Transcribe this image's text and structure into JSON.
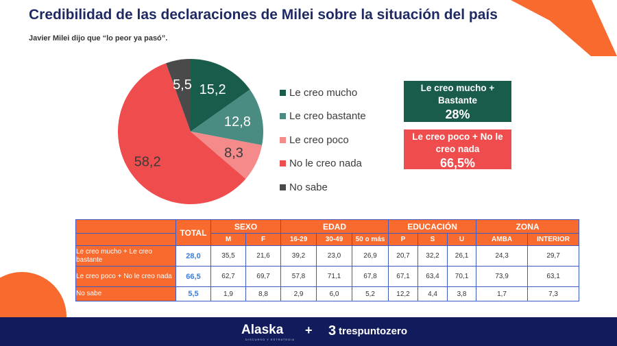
{
  "title": "Credibilidad de las declaraciones de Milei sobre la situación del país",
  "subtitle": "Javier Milei dijo que “lo peor ya pasó”.",
  "chart_data": {
    "type": "pie",
    "start_angle_deg": 0,
    "slices": [
      {
        "label": "Le creo mucho",
        "value": 15.2,
        "value_label": "15,2",
        "color": "#195c4c"
      },
      {
        "label": "Le creo bastante",
        "value": 12.8,
        "value_label": "12,8",
        "color": "#4b8c82"
      },
      {
        "label": "Le creo poco",
        "value": 8.3,
        "value_label": "8,3",
        "color": "#f58a8a"
      },
      {
        "label": "No le creo nada",
        "value": 58.2,
        "value_label": "58,2",
        "color": "#ef4d4d"
      },
      {
        "label": "No sabe",
        "value": 5.5,
        "value_label": "5,5",
        "color": "#4a4a4a"
      }
    ],
    "legend_position": "right"
  },
  "summary_boxes": {
    "positive": {
      "label": "Le creo mucho + Bastante",
      "value": "28%",
      "color": "#195c4c"
    },
    "negative": {
      "label": "Le creo poco + No le creo nada",
      "value": "66,5%",
      "color": "#ef4d4d"
    }
  },
  "table": {
    "total_header": "TOTAL",
    "groups": [
      {
        "label": "SEXO",
        "subs": [
          "M",
          "F"
        ]
      },
      {
        "label": "EDAD",
        "subs": [
          "16-29",
          "30-49",
          "50 o más"
        ]
      },
      {
        "label": "EDUCACIÓN",
        "subs": [
          "P",
          "S",
          "U"
        ]
      },
      {
        "label": "ZONA",
        "subs": [
          "AMBA",
          "INTERIOR"
        ]
      }
    ],
    "rows": [
      {
        "label": "Le creo mucho + Le creo bastante",
        "total": "28,0",
        "values": [
          "35,5",
          "21,6",
          "39,2",
          "23,0",
          "26,9",
          "20,7",
          "32,2",
          "26,1",
          "24,3",
          "29,7"
        ]
      },
      {
        "label": "Le creo poco + No le creo nada",
        "total": "66,5",
        "values": [
          "62,7",
          "69,7",
          "57,8",
          "71,1",
          "67,8",
          "67,1",
          "63,4",
          "70,1",
          "73,9",
          "63,1"
        ]
      },
      {
        "label": "No sabe",
        "total": "5,5",
        "values": [
          "1,9",
          "8,8",
          "2,9",
          "6,0",
          "5,2",
          "12,2",
          "4,4",
          "3,8",
          "1,7",
          "7,3"
        ]
      }
    ]
  },
  "footer": {
    "brand1": "Alaska",
    "brand1_tagline": "DISCURSO Y ESTRATEGIA",
    "plus": "+",
    "brand2_icon": "3",
    "brand2": "trespuntozero"
  },
  "colors": {
    "accent_orange": "#f86a2e",
    "navy": "#121c5c",
    "title_navy": "#1f2a64"
  }
}
